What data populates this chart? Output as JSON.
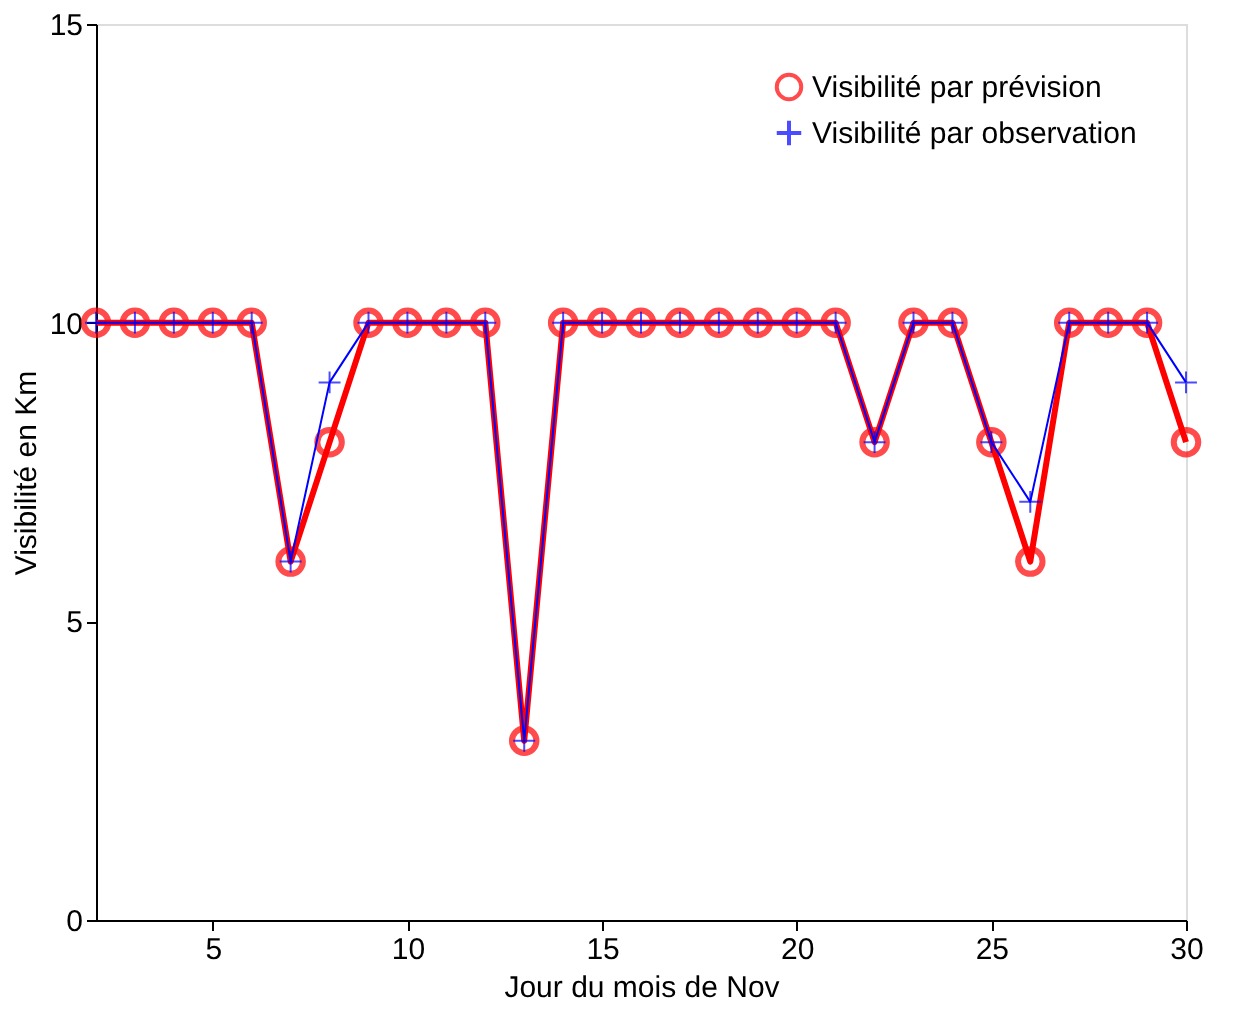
{
  "chart_data": {
    "type": "line",
    "xlabel": "Jour du mois de Nov",
    "ylabel": "Visibilité en Km",
    "x": [
      2,
      3,
      4,
      5,
      6,
      7,
      8,
      9,
      10,
      11,
      12,
      13,
      14,
      15,
      16,
      17,
      18,
      19,
      20,
      21,
      22,
      23,
      24,
      25,
      26,
      27,
      28,
      29,
      30
    ],
    "series": [
      {
        "name": "Visibilité par prévision",
        "color": "#ff0000",
        "marker": "circle",
        "values": [
          10,
          10,
          10,
          10,
          10,
          6,
          8,
          10,
          10,
          10,
          10,
          3,
          10,
          10,
          10,
          10,
          10,
          10,
          10,
          10,
          8,
          10,
          10,
          8,
          6,
          10,
          10,
          10,
          8
        ]
      },
      {
        "name": "Visibilité par observation",
        "color": "#0000ff",
        "marker": "cross",
        "values": [
          10,
          10,
          10,
          10,
          10,
          6,
          9,
          10,
          10,
          10,
          10,
          3,
          10,
          10,
          10,
          10,
          10,
          10,
          10,
          10,
          8,
          10,
          10,
          8,
          7,
          10,
          10,
          10,
          9
        ]
      }
    ],
    "xlim": [
      2,
      30
    ],
    "xticks": [
      5,
      10,
      15,
      20,
      25,
      30
    ],
    "ylim": [
      0,
      15
    ],
    "yticks": [
      0,
      5,
      10,
      15
    ],
    "grid": false,
    "legend": "top right",
    "line_style": "solid"
  }
}
